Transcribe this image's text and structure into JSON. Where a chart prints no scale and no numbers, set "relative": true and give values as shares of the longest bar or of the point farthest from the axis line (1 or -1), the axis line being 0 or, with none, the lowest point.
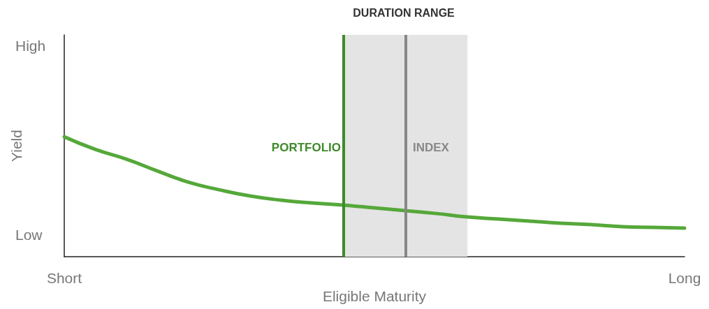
{
  "chart_data": {
    "type": "line",
    "relative": true,
    "xlabel": "Eligible Maturity",
    "ylabel": "Yield",
    "categories": [
      "Short",
      null,
      null,
      null,
      null,
      null,
      null,
      null,
      null,
      null,
      null,
      null,
      null,
      null,
      null,
      null,
      null,
      null,
      null,
      null,
      "Long"
    ],
    "series": [
      {
        "color": "#55a83a",
        "values": [
          1,
          0.895,
          0.814,
          0.715,
          0.622,
          0.558,
          0.506,
          0.471,
          0.448,
          0.43,
          0.407,
          0.384,
          0.36,
          0.331,
          0.314,
          0.297,
          0.279,
          0.267,
          0.25,
          0.244,
          0.238
        ]
      }
    ],
    "annotations": [
      "High",
      "Low",
      "DURATION RANGE",
      "PORTFOLIO",
      "INDEX"
    ],
    "grid": false,
    "marker": "none",
    "line_style": "solid"
  }
}
